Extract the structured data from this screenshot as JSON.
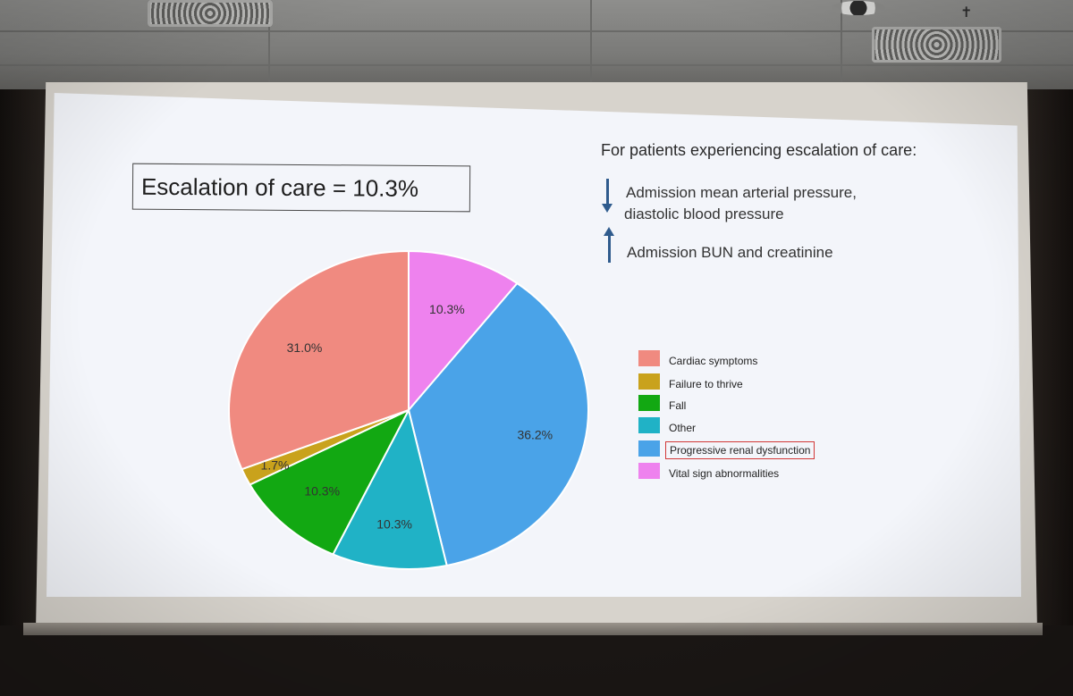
{
  "slide": {
    "title": "Escalation of care = 10.3%",
    "info_heading": "For patients experiencing escalation of care:",
    "decrease_line1": "Admission mean arterial pressure,",
    "decrease_line2": "diastolic blood pressure",
    "increase_line": "Admission BUN and creatinine",
    "arrow_colors": "#2f5b8d"
  },
  "chart_data": {
    "type": "pie",
    "title": "",
    "start": "12 o'clock, clockwise",
    "slices": [
      {
        "label": "Vital sign abnormalities",
        "value": 10.3,
        "display": "10.3%",
        "color": "#ee82ee"
      },
      {
        "label": "Progressive renal dysfunction",
        "value": 36.2,
        "display": "36.2%",
        "color": "#4aa3e8"
      },
      {
        "label": "Other",
        "value": 10.3,
        "display": "10.3%",
        "color": "#20b2c6"
      },
      {
        "label": "Fall",
        "value": 10.3,
        "display": "10.3%",
        "color": "#12a812"
      },
      {
        "label": "Failure to thrive",
        "value": 1.7,
        "display": "1.7%",
        "color": "#c9a21c"
      },
      {
        "label": "Cardiac symptoms",
        "value": 31.0,
        "display": "31.0%",
        "color": "#f08a80"
      }
    ],
    "legend": {
      "placement": "right",
      "items": [
        {
          "label": "Cardiac symptoms",
          "color": "#f08a80"
        },
        {
          "label": "Failure to thrive",
          "color": "#c9a21c"
        },
        {
          "label": "Fall",
          "color": "#12a812"
        },
        {
          "label": "Other",
          "color": "#20b2c6"
        },
        {
          "label": "Progressive renal dysfunction",
          "color": "#4aa3e8",
          "highlighted": true
        },
        {
          "label": "Vital sign abnormalities",
          "color": "#ee82ee"
        }
      ]
    }
  }
}
